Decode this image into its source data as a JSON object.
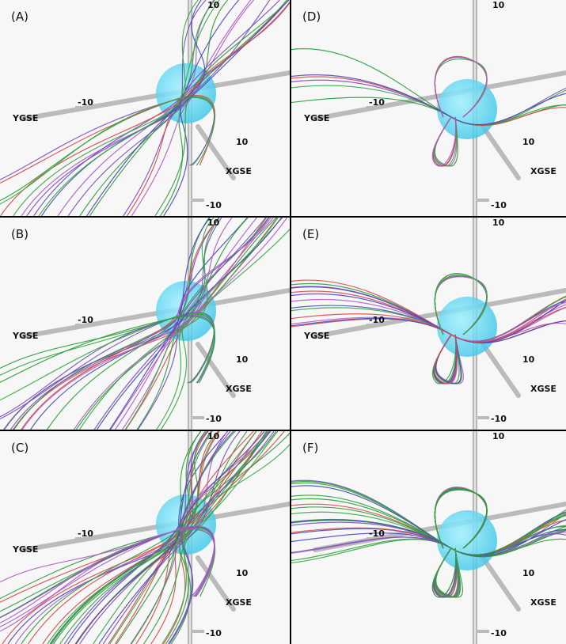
{
  "panels": [
    {
      "label": "(A)",
      "axis_top": "10",
      "y_axis": "YGSE",
      "y_tick": "-10",
      "x_tick": "10",
      "x_axis": "XGSE",
      "axis_bottom": "-10"
    },
    {
      "label": "(D)",
      "axis_top": "10",
      "y_axis": "YGSE",
      "y_tick": "-10",
      "x_tick": "10",
      "x_axis": "XGSE",
      "axis_bottom": "-10"
    },
    {
      "label": "(B)",
      "axis_top": "10",
      "y_axis": "YGSE",
      "y_tick": "-10",
      "x_tick": "10",
      "x_axis": "XGSE",
      "axis_bottom": "-10"
    },
    {
      "label": "(E)",
      "axis_top": "10",
      "y_axis": "YGSE",
      "y_tick": "-10",
      "x_tick": "10",
      "x_axis": "XGSE",
      "axis_bottom": "-10"
    },
    {
      "label": "(C)",
      "axis_top": "10",
      "y_axis": "YGSE",
      "y_tick": "-10",
      "x_tick": "10",
      "x_axis": "XGSE",
      "axis_bottom": "-10"
    },
    {
      "label": "(F)",
      "axis_top": "10",
      "y_tick": "-10",
      "x_tick": "10",
      "x_axis": "XGSE",
      "axis_bottom": "-10"
    }
  ]
}
